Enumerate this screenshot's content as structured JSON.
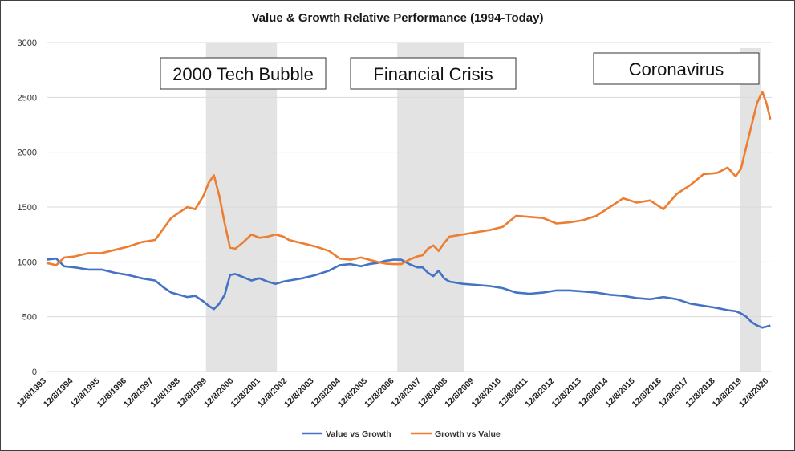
{
  "chart_data": {
    "type": "line",
    "title": "Value & Growth Relative Performance (1994-Today)",
    "xlabel": "",
    "ylabel": "",
    "ylim": [
      0,
      3000
    ],
    "yticks": [
      0,
      500,
      1000,
      1500,
      2000,
      2500,
      3000
    ],
    "x_tick_labels": [
      "12/8/1993",
      "12/8/1994",
      "12/8/1995",
      "12/8/1996",
      "12/8/1997",
      "12/8/1998",
      "12/8/1999",
      "12/8/2000",
      "12/8/2001",
      "12/8/2002",
      "12/8/2003",
      "12/8/2004",
      "12/8/2005",
      "12/8/2006",
      "12/8/2007",
      "12/8/2008",
      "12/8/2009",
      "12/8/2010",
      "12/8/2011",
      "12/8/2012",
      "12/8/2013",
      "12/8/2014",
      "12/8/2015",
      "12/8/2016",
      "12/8/2017",
      "12/8/2018",
      "12/8/2019",
      "12/8/2020"
    ],
    "xlim": [
      1993.94,
      2021.05
    ],
    "grid": true,
    "legend_position": "bottom",
    "shaded_periods": [
      {
        "label": "2000 Tech Bubble",
        "start": 1999.9,
        "end": 2002.55
      },
      {
        "label": "Financial Crisis",
        "start": 2007.05,
        "end": 2009.55
      },
      {
        "label": "Coronavirus",
        "start": 2019.85,
        "end": 2020.65
      }
    ],
    "series": [
      {
        "name": "Value vs Growth",
        "color": "#4472C4",
        "x": [
          1993.94,
          1994.3,
          1994.6,
          1995.0,
          1995.5,
          1996.0,
          1996.5,
          1997.0,
          1997.5,
          1998.0,
          1998.3,
          1998.6,
          1998.9,
          1999.2,
          1999.5,
          1999.8,
          2000.0,
          2000.2,
          2000.4,
          2000.6,
          2000.8,
          2001.0,
          2001.3,
          2001.6,
          2001.9,
          2002.2,
          2002.5,
          2002.8,
          2003.0,
          2003.5,
          2004.0,
          2004.5,
          2004.9,
          2005.3,
          2005.7,
          2006.0,
          2006.3,
          2006.6,
          2006.9,
          2007.2,
          2007.5,
          2007.8,
          2008.0,
          2008.2,
          2008.4,
          2008.6,
          2008.8,
          2009.0,
          2009.5,
          2010.0,
          2010.5,
          2011.0,
          2011.5,
          2012.0,
          2012.5,
          2013.0,
          2013.5,
          2014.0,
          2014.5,
          2015.0,
          2015.5,
          2016.0,
          2016.5,
          2017.0,
          2017.5,
          2018.0,
          2018.5,
          2019.0,
          2019.4,
          2019.7,
          2019.9,
          2020.1,
          2020.3,
          2020.5,
          2020.7,
          2020.85,
          2021.0
        ],
        "values": [
          1020,
          1030,
          960,
          950,
          930,
          930,
          900,
          880,
          850,
          830,
          770,
          720,
          700,
          680,
          690,
          640,
          600,
          570,
          620,
          700,
          880,
          890,
          860,
          830,
          850,
          820,
          800,
          820,
          830,
          850,
          880,
          920,
          970,
          980,
          960,
          980,
          990,
          1010,
          1020,
          1020,
          980,
          950,
          950,
          900,
          870,
          920,
          850,
          820,
          800,
          790,
          780,
          760,
          720,
          710,
          720,
          740,
          740,
          730,
          720,
          700,
          690,
          670,
          660,
          680,
          660,
          620,
          600,
          580,
          560,
          550,
          530,
          500,
          450,
          420,
          400,
          410,
          420
        ]
      },
      {
        "name": "Growth vs Value",
        "color": "#ED7D31",
        "x": [
          1993.94,
          1994.3,
          1994.6,
          1995.0,
          1995.5,
          1996.0,
          1996.5,
          1997.0,
          1997.5,
          1998.0,
          1998.3,
          1998.6,
          1998.9,
          1999.2,
          1999.5,
          1999.8,
          2000.0,
          2000.2,
          2000.4,
          2000.6,
          2000.8,
          2001.0,
          2001.3,
          2001.6,
          2001.9,
          2002.2,
          2002.5,
          2002.8,
          2003.0,
          2003.5,
          2004.0,
          2004.5,
          2004.9,
          2005.3,
          2005.7,
          2006.0,
          2006.3,
          2006.6,
          2006.9,
          2007.2,
          2007.5,
          2007.8,
          2008.0,
          2008.2,
          2008.4,
          2008.6,
          2008.8,
          2009.0,
          2009.5,
          2010.0,
          2010.5,
          2011.0,
          2011.5,
          2012.0,
          2012.5,
          2013.0,
          2013.5,
          2014.0,
          2014.5,
          2015.0,
          2015.5,
          2016.0,
          2016.5,
          2017.0,
          2017.5,
          2018.0,
          2018.5,
          2019.0,
          2019.4,
          2019.7,
          2019.9,
          2020.1,
          2020.3,
          2020.5,
          2020.7,
          2020.85,
          2021.0
        ],
        "values": [
          990,
          970,
          1040,
          1050,
          1080,
          1080,
          1110,
          1140,
          1180,
          1200,
          1300,
          1400,
          1450,
          1500,
          1480,
          1600,
          1720,
          1790,
          1600,
          1350,
          1130,
          1120,
          1180,
          1250,
          1220,
          1230,
          1250,
          1230,
          1200,
          1170,
          1140,
          1100,
          1030,
          1020,
          1040,
          1020,
          1000,
          985,
          980,
          980,
          1020,
          1050,
          1060,
          1120,
          1150,
          1100,
          1170,
          1230,
          1250,
          1270,
          1290,
          1320,
          1420,
          1410,
          1400,
          1350,
          1360,
          1380,
          1420,
          1500,
          1580,
          1540,
          1560,
          1480,
          1620,
          1700,
          1800,
          1810,
          1860,
          1780,
          1850,
          2050,
          2250,
          2450,
          2550,
          2450,
          2300
        ]
      }
    ]
  }
}
